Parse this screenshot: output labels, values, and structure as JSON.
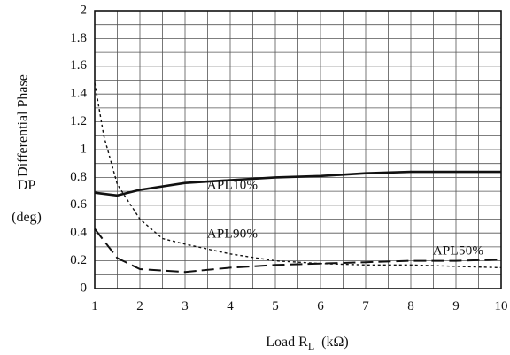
{
  "chart_data": {
    "type": "line",
    "title": "",
    "xlabel": "Load R",
    "xlabel_sub": "L",
    "xlabel_unit": "(kΩ)",
    "ylabel_rotated": "Differential Phase",
    "ylabel_symbol": "DP",
    "ylabel_unit": "(deg)",
    "xlim": [
      1,
      10
    ],
    "ylim": [
      0,
      2
    ],
    "x_ticks": [
      "1",
      "2",
      "3",
      "4",
      "5",
      "6",
      "7",
      "8",
      "9",
      "10"
    ],
    "y_ticks": [
      "0",
      "0.2",
      "0.4",
      "0.6",
      "0.8",
      "1",
      "1.2",
      "1.4",
      "1.6",
      "1.8",
      "2"
    ],
    "grid": true,
    "series": [
      {
        "name": "APL10%",
        "style": "solid",
        "x": [
          1,
          1.5,
          2,
          3,
          4,
          5,
          6,
          7,
          8,
          9,
          10
        ],
        "y": [
          0.69,
          0.67,
          0.71,
          0.76,
          0.78,
          0.8,
          0.81,
          0.83,
          0.84,
          0.84,
          0.84
        ]
      },
      {
        "name": "APL90%",
        "style": "dotted",
        "x": [
          1,
          1.2,
          1.5,
          2,
          2.5,
          3,
          4,
          5,
          6,
          7,
          8,
          9,
          10
        ],
        "y": [
          1.48,
          1.1,
          0.75,
          0.5,
          0.36,
          0.32,
          0.25,
          0.2,
          0.18,
          0.17,
          0.17,
          0.16,
          0.15
        ]
      },
      {
        "name": "APL50%",
        "style": "dashed",
        "x": [
          1,
          1.5,
          2,
          2.5,
          3,
          4,
          5,
          6,
          7,
          8,
          9,
          10
        ],
        "y": [
          0.43,
          0.22,
          0.14,
          0.13,
          0.12,
          0.15,
          0.17,
          0.18,
          0.19,
          0.2,
          0.2,
          0.21
        ]
      }
    ],
    "colors": {
      "grid": "#555555",
      "axis": "#111111",
      "series": "#111111"
    }
  }
}
